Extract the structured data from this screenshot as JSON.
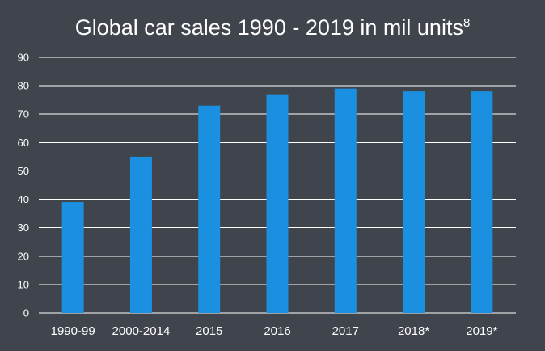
{
  "chart_data": {
    "type": "bar",
    "title": "Global car sales 1990 - 2019 in mil units",
    "title_superscript": "8",
    "categories": [
      "1990-99",
      "2000-2014",
      "2015",
      "2016",
      "2017",
      "2018*",
      "2019*"
    ],
    "values": [
      39,
      55,
      73,
      77,
      79,
      78,
      78
    ],
    "ylim": [
      0,
      90
    ],
    "yticks": [
      0,
      10,
      20,
      30,
      40,
      50,
      60,
      70,
      80,
      90
    ],
    "xlabel": "",
    "ylabel": "",
    "grid": true,
    "legend": "none",
    "colors": {
      "bar": "#1b8fe0",
      "background": "#40444d",
      "grid": "#ffffff",
      "text": "#ffffff"
    }
  }
}
